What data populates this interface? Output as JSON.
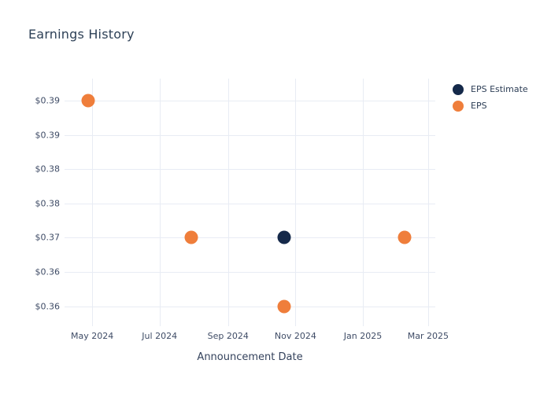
{
  "chart": {
    "title": "Earnings History",
    "xlabel": "Announcement Date"
  },
  "chart_data": {
    "type": "scatter",
    "title": "Earnings History",
    "xlabel": "Announcement Date",
    "ylabel": "",
    "grid": true,
    "legend_position": "right",
    "x_axis": {
      "unit": "days since 2024-01-01",
      "range": [
        96,
        431.5
      ],
      "ticks": [
        {
          "label": "May 2024",
          "day": 121
        },
        {
          "label": "Jul 2024",
          "day": 182
        },
        {
          "label": "Sep 2024",
          "day": 244
        },
        {
          "label": "Nov 2024",
          "day": 305
        },
        {
          "label": "Jan 2025",
          "day": 366
        },
        {
          "label": "Mar 2025",
          "day": 425
        }
      ]
    },
    "y_axis": {
      "unit": "USD",
      "range": [
        0.3571,
        0.3932
      ],
      "ticks": [
        {
          "label": "$0.39",
          "value": 0.39
        },
        {
          "label": "$0.39",
          "value": 0.385
        },
        {
          "label": "$0.38",
          "value": 0.38
        },
        {
          "label": "$0.38",
          "value": 0.375
        },
        {
          "label": "$0.37",
          "value": 0.37
        },
        {
          "label": "$0.36",
          "value": 0.365
        },
        {
          "label": "$0.36",
          "value": 0.36
        }
      ]
    },
    "series": [
      {
        "name": "EPS Estimate",
        "color": "#15294a",
        "points": [
          {
            "x": "2024-10-22",
            "day": 295,
            "value": 0.37
          }
        ]
      },
      {
        "name": "EPS",
        "color": "#ef7e3b",
        "points": [
          {
            "x": "2024-04-26",
            "day": 117,
            "value": 0.39
          },
          {
            "x": "2024-07-30",
            "day": 211,
            "value": 0.37
          },
          {
            "x": "2024-10-22",
            "day": 295,
            "value": 0.36
          },
          {
            "x": "2025-02-08",
            "day": 404,
            "value": 0.37
          }
        ]
      }
    ],
    "colors": {
      "grid": "#e8ecf4",
      "title_text": "#2e4157",
      "tick_text": "#3f4c66",
      "axis_title_text": "#34425c",
      "legend_text": "#2d3e56",
      "background": "#ffffff"
    }
  }
}
